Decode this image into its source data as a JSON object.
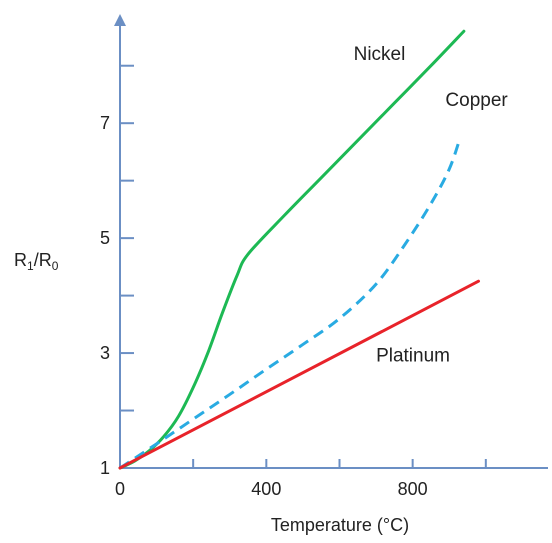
{
  "chart_data": {
    "type": "line",
    "title": "",
    "xlabel": "Temperature (°C)",
    "ylabel": {
      "main": "R",
      "sub1": "1",
      "sep": "/R",
      "sub2": "0"
    },
    "xlim": [
      0,
      1170
    ],
    "ylim": [
      1,
      8.9
    ],
    "x_ticks": [
      0,
      200,
      400,
      600,
      800,
      1000
    ],
    "x_tick_labels": [
      {
        "value": 0,
        "label": "0"
      },
      {
        "value": 400,
        "label": "400"
      },
      {
        "value": 800,
        "label": "800"
      }
    ],
    "y_ticks": [
      1,
      2,
      3,
      4,
      5,
      6,
      7,
      8
    ],
    "y_tick_labels": [
      {
        "value": 1,
        "label": "1"
      },
      {
        "value": 3,
        "label": "3"
      },
      {
        "value": 5,
        "label": "5"
      },
      {
        "value": 7,
        "label": "7"
      }
    ],
    "grid": false,
    "legend": "none",
    "series": [
      {
        "name": "Nickel",
        "color": "#1db954",
        "style": "solid",
        "x": [
          0,
          40,
          80,
          120,
          160,
          200,
          240,
          280,
          320,
          350,
          450,
          550,
          650,
          750,
          850,
          940
        ],
        "y": [
          1.0,
          1.12,
          1.3,
          1.55,
          1.9,
          2.4,
          3.0,
          3.7,
          4.35,
          4.72,
          5.4,
          6.05,
          6.7,
          7.35,
          8.0,
          8.6
        ]
      },
      {
        "name": "Copper",
        "color": "#29abe2",
        "style": "dashed",
        "x": [
          0,
          100,
          200,
          300,
          400,
          500,
          600,
          700,
          780,
          850,
          900,
          930
        ],
        "y": [
          1.0,
          1.42,
          1.85,
          2.28,
          2.72,
          3.15,
          3.6,
          4.2,
          4.9,
          5.6,
          6.2,
          6.75
        ]
      },
      {
        "name": "Platinum",
        "color": "#e8232a",
        "style": "solid",
        "x": [
          0,
          980
        ],
        "y": [
          1.0,
          4.25
        ]
      }
    ]
  }
}
